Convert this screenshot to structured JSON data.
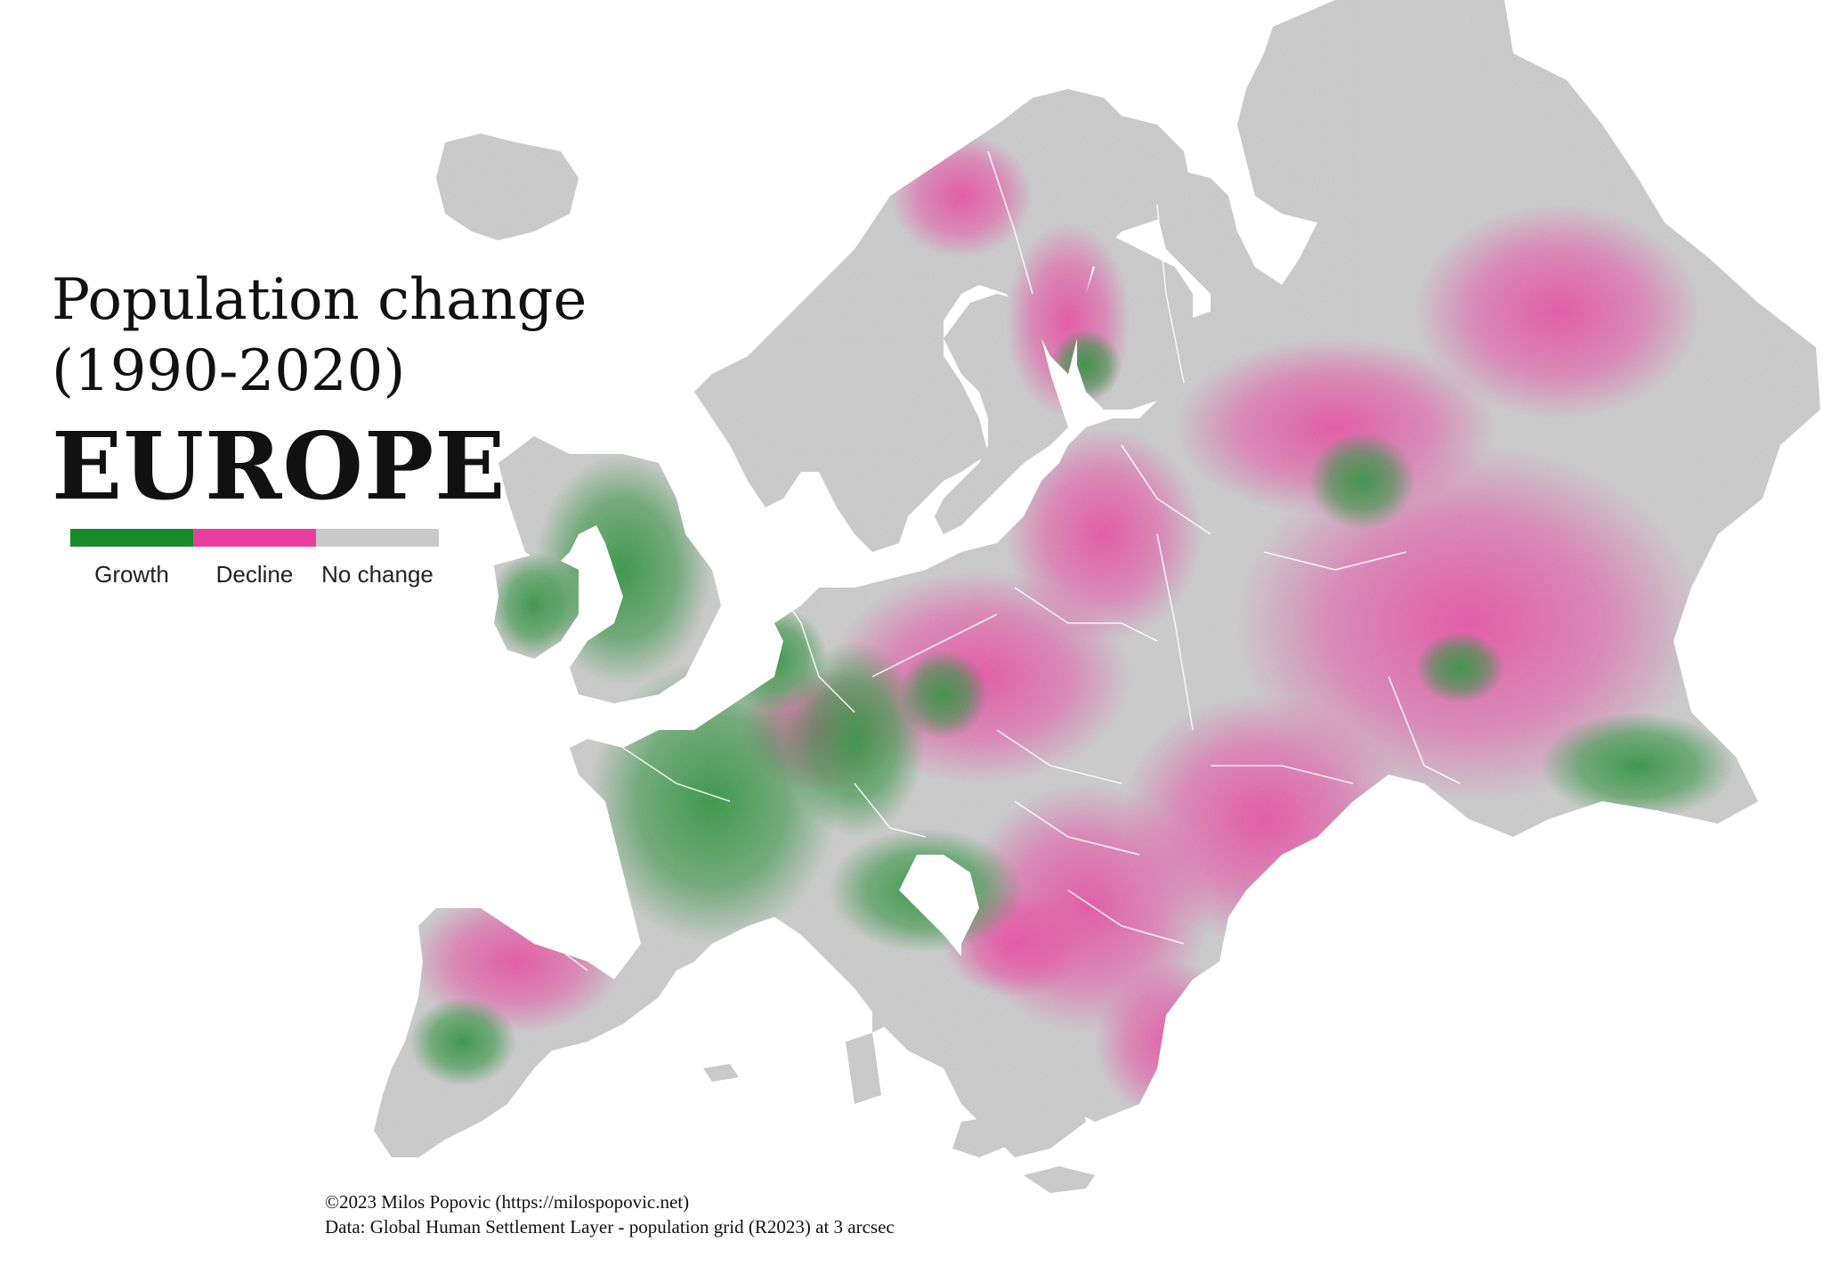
{
  "title": {
    "line1": "Population change",
    "line2": "(1990-2020)",
    "line3": "EUROPE"
  },
  "legend": [
    {
      "label": "Growth",
      "color": "#1a8a2a"
    },
    {
      "label": "Decline",
      "color": "#e83e9e"
    },
    {
      "label": "No change",
      "color": "#c9c9c9"
    }
  ],
  "credits": {
    "line1": "©2023 Milos Popovic (https://milospopovic.net)",
    "line2": "Data: Global Human Settlement Layer - population grid (R2023) at 3 arcsec"
  },
  "colors": {
    "growth": "#1a8a2a",
    "decline": "#e83e9e",
    "no_change": "#c9c9c9",
    "border": "#ffffff",
    "background": "#ffffff"
  }
}
